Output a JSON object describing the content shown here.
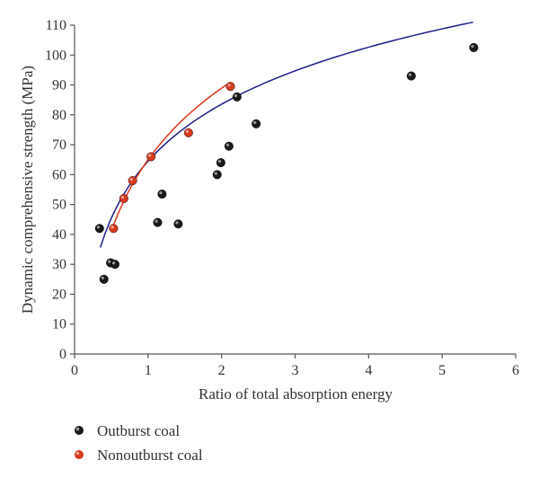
{
  "chart_data": {
    "type": "scatter",
    "title": "",
    "xlabel": "Ratio of total absorption energy",
    "ylabel": "Dynamic comprehensive strength (MPa)",
    "xlim": [
      0,
      6
    ],
    "ylim": [
      0,
      110
    ],
    "x_ticks": [
      "0",
      "1",
      "2",
      "3",
      "4",
      "5",
      "6"
    ],
    "y_ticks": [
      "0",
      "10",
      "20",
      "30",
      "40",
      "50",
      "60",
      "70",
      "80",
      "90",
      "100",
      "110"
    ],
    "legend_position": "bottom-left",
    "grid": false,
    "series": [
      {
        "name": "Outburst coal",
        "color": "#1a1a1a",
        "fit_color": "#1f1f8a",
        "points": [
          {
            "x": 0.34,
            "y": 42
          },
          {
            "x": 0.4,
            "y": 25
          },
          {
            "x": 0.49,
            "y": 30.5
          },
          {
            "x": 0.55,
            "y": 30
          },
          {
            "x": 1.13,
            "y": 44
          },
          {
            "x": 1.19,
            "y": 53.5
          },
          {
            "x": 1.41,
            "y": 43.5
          },
          {
            "x": 1.94,
            "y": 60
          },
          {
            "x": 1.99,
            "y": 64
          },
          {
            "x": 2.1,
            "y": 69.5
          },
          {
            "x": 2.21,
            "y": 86
          },
          {
            "x": 2.47,
            "y": 77
          },
          {
            "x": 4.58,
            "y": 93
          },
          {
            "x": 5.43,
            "y": 102.5
          }
        ],
        "fit": {
          "a": 64.5,
          "b": 27.5,
          "form": "a + b*ln(x)",
          "x_range": [
            0.35,
            5.42
          ]
        }
      },
      {
        "name": "Nonoutburst coal",
        "color": "#d63a1e",
        "fit_color": "#d63a1e",
        "points": [
          {
            "x": 0.53,
            "y": 42
          },
          {
            "x": 0.67,
            "y": 52
          },
          {
            "x": 0.79,
            "y": 58
          },
          {
            "x": 1.04,
            "y": 66
          },
          {
            "x": 1.55,
            "y": 74
          },
          {
            "x": 2.12,
            "y": 89.5
          }
        ],
        "fit": {
          "a": 65,
          "b": 34.5,
          "form": "a + b*ln(x)",
          "x_range": [
            0.53,
            2.12
          ]
        }
      }
    ]
  }
}
